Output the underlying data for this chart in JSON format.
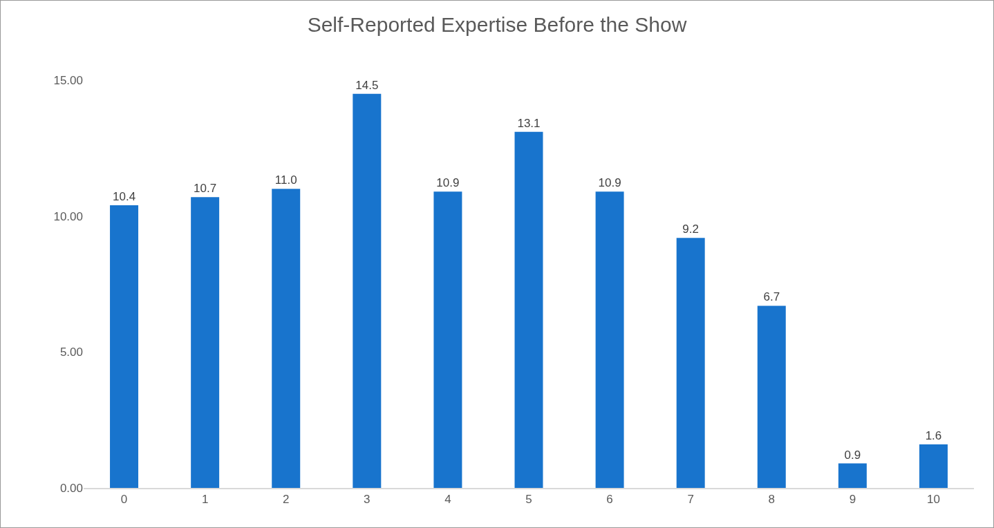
{
  "chart_data": {
    "type": "bar",
    "title": "Self-Reported Expertise Before the Show",
    "categories": [
      "0",
      "1",
      "2",
      "3",
      "4",
      "5",
      "6",
      "7",
      "8",
      "9",
      "10"
    ],
    "values": [
      10.4,
      10.7,
      11.0,
      14.5,
      10.9,
      13.1,
      10.9,
      9.2,
      6.7,
      0.9,
      1.6
    ],
    "value_labels": [
      "10.4",
      "10.7",
      "11.0",
      "14.5",
      "10.9",
      "13.1",
      "10.9",
      "9.2",
      "6.7",
      "0.9",
      "1.6"
    ],
    "color": "#1874cd",
    "ylim": [
      0,
      15
    ],
    "yticks": [
      {
        "value": 0,
        "label": "0.00"
      },
      {
        "value": 5,
        "label": "5.00"
      },
      {
        "value": 10,
        "label": "10.00"
      },
      {
        "value": 15,
        "label": "15.00"
      }
    ],
    "grid": false,
    "legend": false
  }
}
